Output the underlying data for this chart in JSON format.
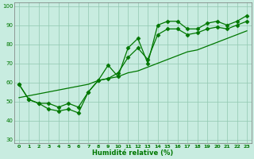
{
  "x": [
    0,
    1,
    2,
    3,
    4,
    5,
    6,
    7,
    8,
    9,
    10,
    11,
    12,
    13,
    14,
    15,
    16,
    17,
    18,
    19,
    20,
    21,
    22,
    23
  ],
  "y_main": [
    59,
    51,
    49,
    46,
    45,
    46,
    44,
    55,
    61,
    69,
    63,
    78,
    83,
    70,
    90,
    92,
    92,
    88,
    88,
    91,
    92,
    90,
    92,
    95
  ],
  "y_smooth": [
    59,
    51,
    49,
    49,
    47,
    49,
    47,
    55,
    61,
    62,
    65,
    73,
    78,
    72,
    85,
    88,
    88,
    85,
    86,
    88,
    89,
    88,
    90,
    92
  ],
  "y_linear": [
    52,
    53,
    54,
    55,
    56,
    57,
    58,
    59,
    61,
    62,
    63,
    65,
    66,
    68,
    70,
    72,
    74,
    76,
    77,
    79,
    81,
    83,
    85,
    87
  ],
  "xlabel": "Humidité relative (%)",
  "xlim": [
    -0.5,
    23.5
  ],
  "ylim": [
    28,
    102
  ],
  "yticks": [
    30,
    40,
    50,
    60,
    70,
    80,
    90,
    100
  ],
  "xticks": [
    0,
    1,
    2,
    3,
    4,
    5,
    6,
    7,
    8,
    9,
    10,
    11,
    12,
    13,
    14,
    15,
    16,
    17,
    18,
    19,
    20,
    21,
    22,
    23
  ],
  "line_color": "#007700",
  "bg_color": "#c8ece0",
  "grid_color": "#90c8b0",
  "markersize": 2.5
}
